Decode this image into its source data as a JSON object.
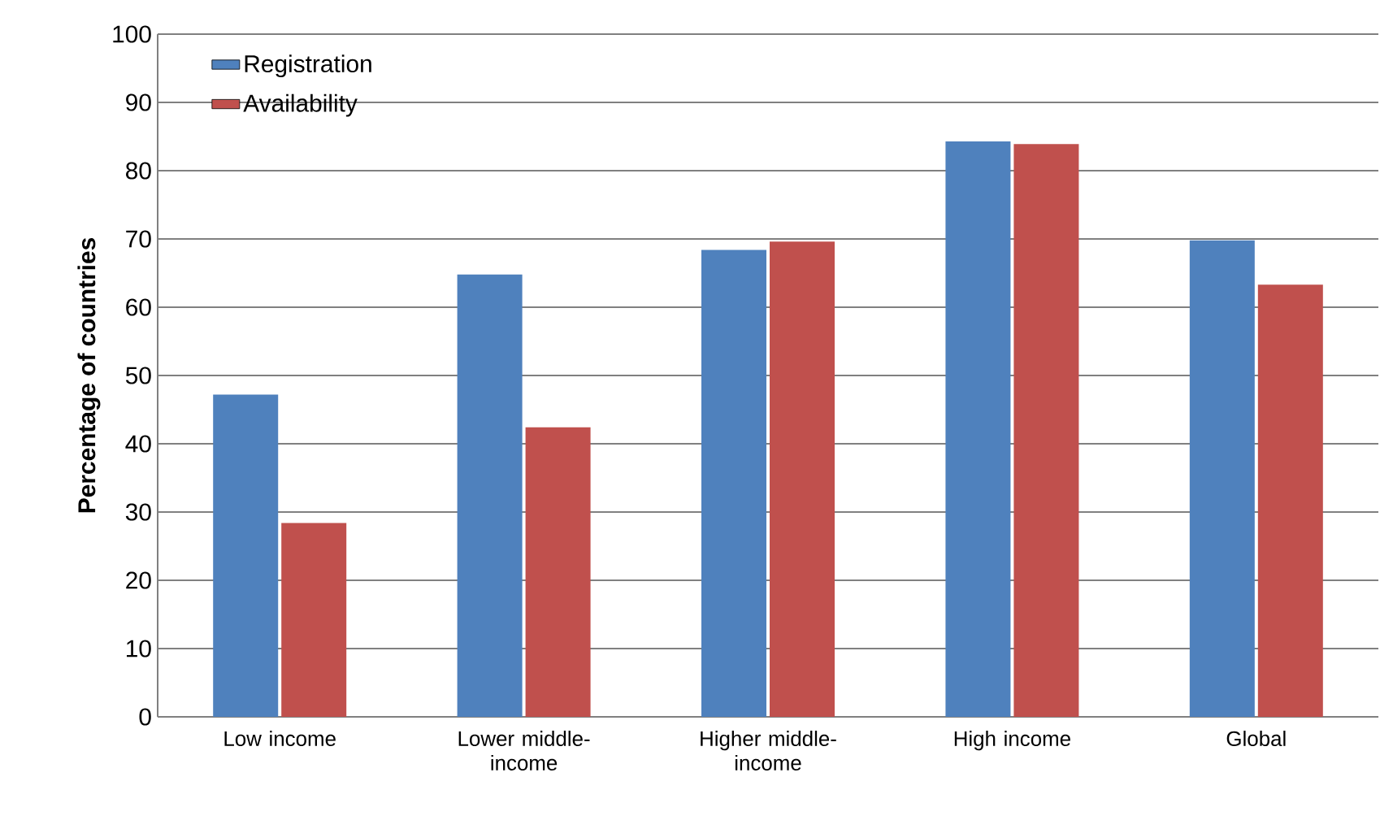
{
  "chart_data": {
    "type": "bar",
    "ylabel": "**Percentage of countries**",
    "categories": [
      "Low income",
      "Lower middle-income",
      "Higher middle-income",
      "High income",
      "Global"
    ],
    "series": [
      {
        "name": "Registration",
        "color": "#4f81bd",
        "values": [
          47.2,
          64.8,
          68.4,
          84.3,
          69.8
        ]
      },
      {
        "name": "Availability",
        "color": "#c0504d",
        "values": [
          28.4,
          42.4,
          69.6,
          83.9,
          63.3
        ]
      }
    ],
    "ylim": [
      0,
      100
    ],
    "yticks": [
      0,
      10,
      20,
      30,
      40,
      50,
      60,
      70,
      80,
      90,
      100
    ],
    "grid": "y",
    "legend": "top left"
  }
}
